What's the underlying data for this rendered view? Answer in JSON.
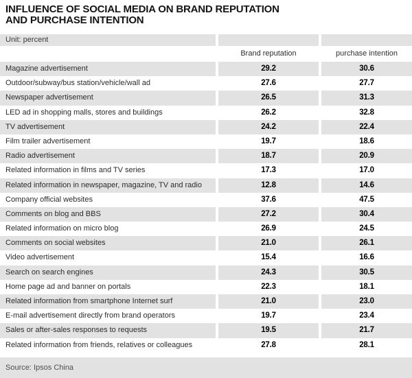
{
  "title": {
    "line1": "INFLUENCE OF SOCIAL MEDIA ON BRAND REPUTATION",
    "line2": "AND PURCHASE INTENTION"
  },
  "unit_label": "Unit: percent",
  "source": "Source: Ipsos China",
  "colors": {
    "stripe_gray": "#e2e2e2",
    "title_text": "#141414",
    "value_text": "#000000",
    "source_text": "#4e4e4e",
    "background": "#ffffff"
  },
  "chart_data": {
    "type": "table",
    "title": "INFLUENCE OF SOCIAL MEDIA ON BRAND REPUTATION AND PURCHASE INTENTION",
    "unit": "percent",
    "columns": [
      "Brand reputation",
      "purchase intention"
    ],
    "rows": [
      {
        "label": "Magazine advertisement",
        "brand_reputation": 29.2,
        "purchase_intention": 30.6
      },
      {
        "label": "Outdoor/subway/bus station/vehicle/wall ad",
        "brand_reputation": 27.6,
        "purchase_intention": 27.7
      },
      {
        "label": "Newspaper advertisement",
        "brand_reputation": 26.5,
        "purchase_intention": 31.3
      },
      {
        "label": "LED ad in shopping malls, stores and buildings",
        "brand_reputation": 26.2,
        "purchase_intention": 32.8
      },
      {
        "label": "TV advertisement",
        "brand_reputation": 24.2,
        "purchase_intention": 22.4
      },
      {
        "label": "Film trailer advertisement",
        "brand_reputation": 19.7,
        "purchase_intention": 18.6
      },
      {
        "label": "Radio advertisement",
        "brand_reputation": 18.7,
        "purchase_intention": 20.9
      },
      {
        "label": "Related information in films and TV series",
        "brand_reputation": 17.3,
        "purchase_intention": 17.0
      },
      {
        "label": "Related information in newspaper, magazine, TV and radio",
        "brand_reputation": 12.8,
        "purchase_intention": 14.6
      },
      {
        "label": "Company official websites",
        "brand_reputation": 37.6,
        "purchase_intention": 47.5
      },
      {
        "label": "Comments on blog and BBS",
        "brand_reputation": 27.2,
        "purchase_intention": 30.4
      },
      {
        "label": "Related information on micro blog",
        "brand_reputation": 26.9,
        "purchase_intention": 24.5
      },
      {
        "label": "Comments on social websites",
        "brand_reputation": 21.0,
        "purchase_intention": 26.1
      },
      {
        "label": "Video advertisement",
        "brand_reputation": 15.4,
        "purchase_intention": 16.6
      },
      {
        "label": "Search on search engines",
        "brand_reputation": 24.3,
        "purchase_intention": 30.5
      },
      {
        "label": "Home page ad and banner on portals",
        "brand_reputation": 22.3,
        "purchase_intention": 18.1
      },
      {
        "label": "Related information from smartphone Internet surf",
        "brand_reputation": 21.0,
        "purchase_intention": 23.0
      },
      {
        "label": "E-mail advertisement directly from brand operators",
        "brand_reputation": 19.7,
        "purchase_intention": 23.4
      },
      {
        "label": "Sales or after-sales responses to requests",
        "brand_reputation": 19.5,
        "purchase_intention": 21.7
      },
      {
        "label": "Related information from friends, relatives or colleagues",
        "brand_reputation": 27.8,
        "purchase_intention": 28.1
      }
    ],
    "source": "Source: Ipsos China",
    "layout": {
      "stripe_start": "first-row",
      "value_decimals": 1,
      "legend_position": "none",
      "grid": "off"
    }
  }
}
